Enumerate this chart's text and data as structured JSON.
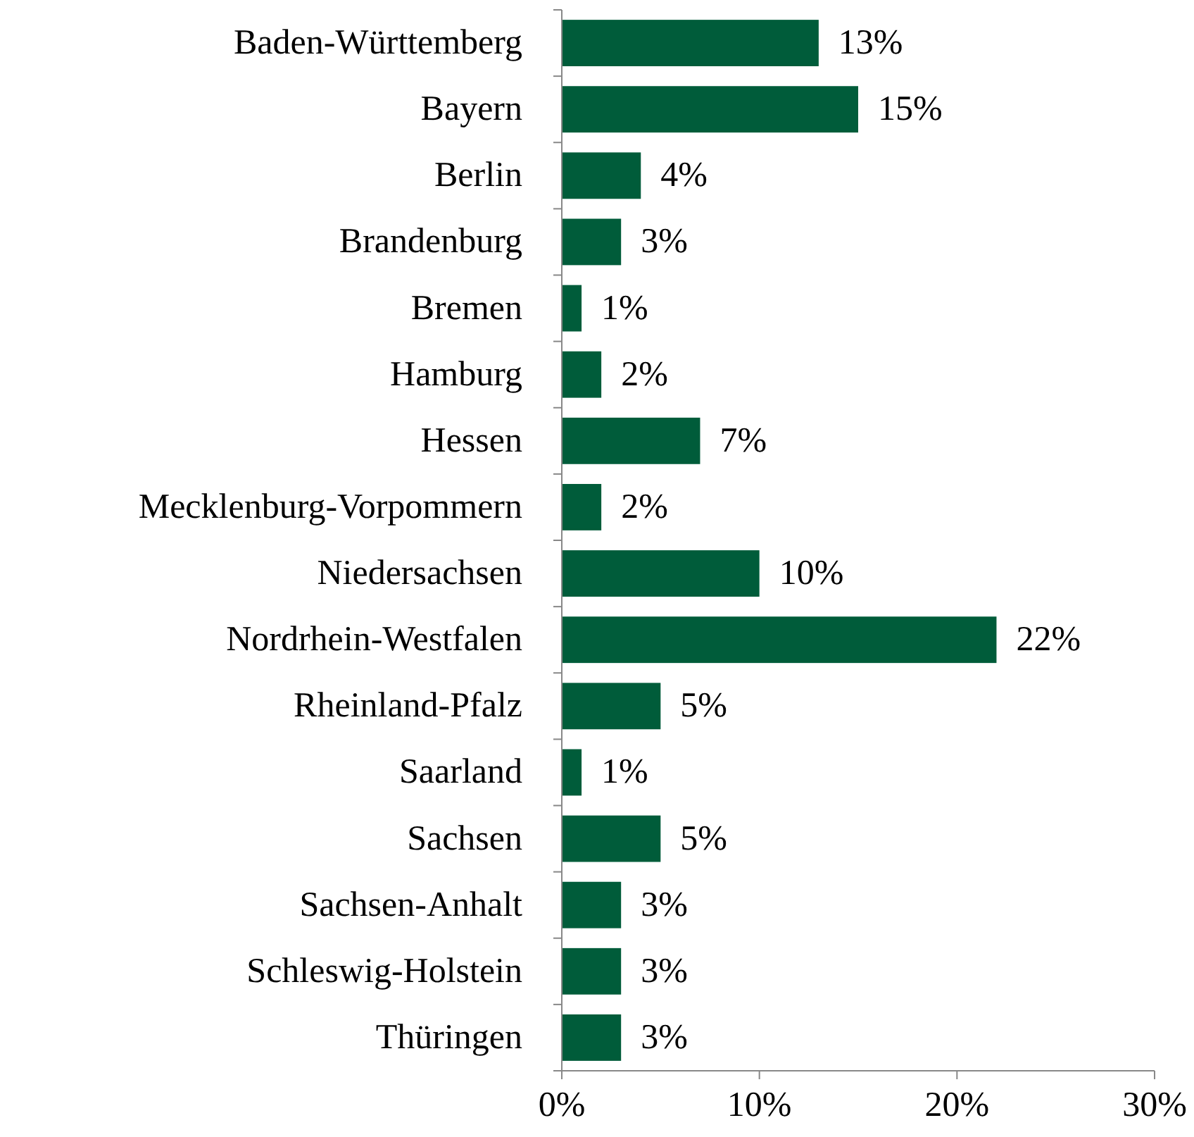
{
  "chart_data": {
    "type": "bar",
    "orientation": "horizontal",
    "categories": [
      "Baden-Württemberg",
      "Bayern",
      "Berlin",
      "Brandenburg",
      "Bremen",
      "Hamburg",
      "Hessen",
      "Mecklenburg-Vorpommern",
      "Niedersachsen",
      "Nordrhein-Westfalen",
      "Rheinland-Pfalz",
      "Saarland",
      "Sachsen",
      "Sachsen-Anhalt",
      "Schleswig-Holstein",
      "Thüringen"
    ],
    "values": [
      13,
      15,
      4,
      3,
      1,
      2,
      7,
      2,
      10,
      22,
      5,
      1,
      5,
      3,
      3,
      3
    ],
    "color": "#005c3a",
    "xlim": [
      0,
      30
    ],
    "xticks": [
      {
        "value": 0,
        "label": "0%"
      },
      {
        "value": 10,
        "label": "10%"
      },
      {
        "value": 20,
        "label": "20%"
      },
      {
        "value": 30,
        "label": "30%"
      }
    ],
    "value_labels": [
      "13%",
      "15%",
      "4%",
      "3%",
      "1%",
      "2%",
      "7%",
      "2%",
      "10%",
      "22%",
      "5%",
      "1%",
      "5%",
      "3%",
      "3%",
      "3%"
    ]
  }
}
